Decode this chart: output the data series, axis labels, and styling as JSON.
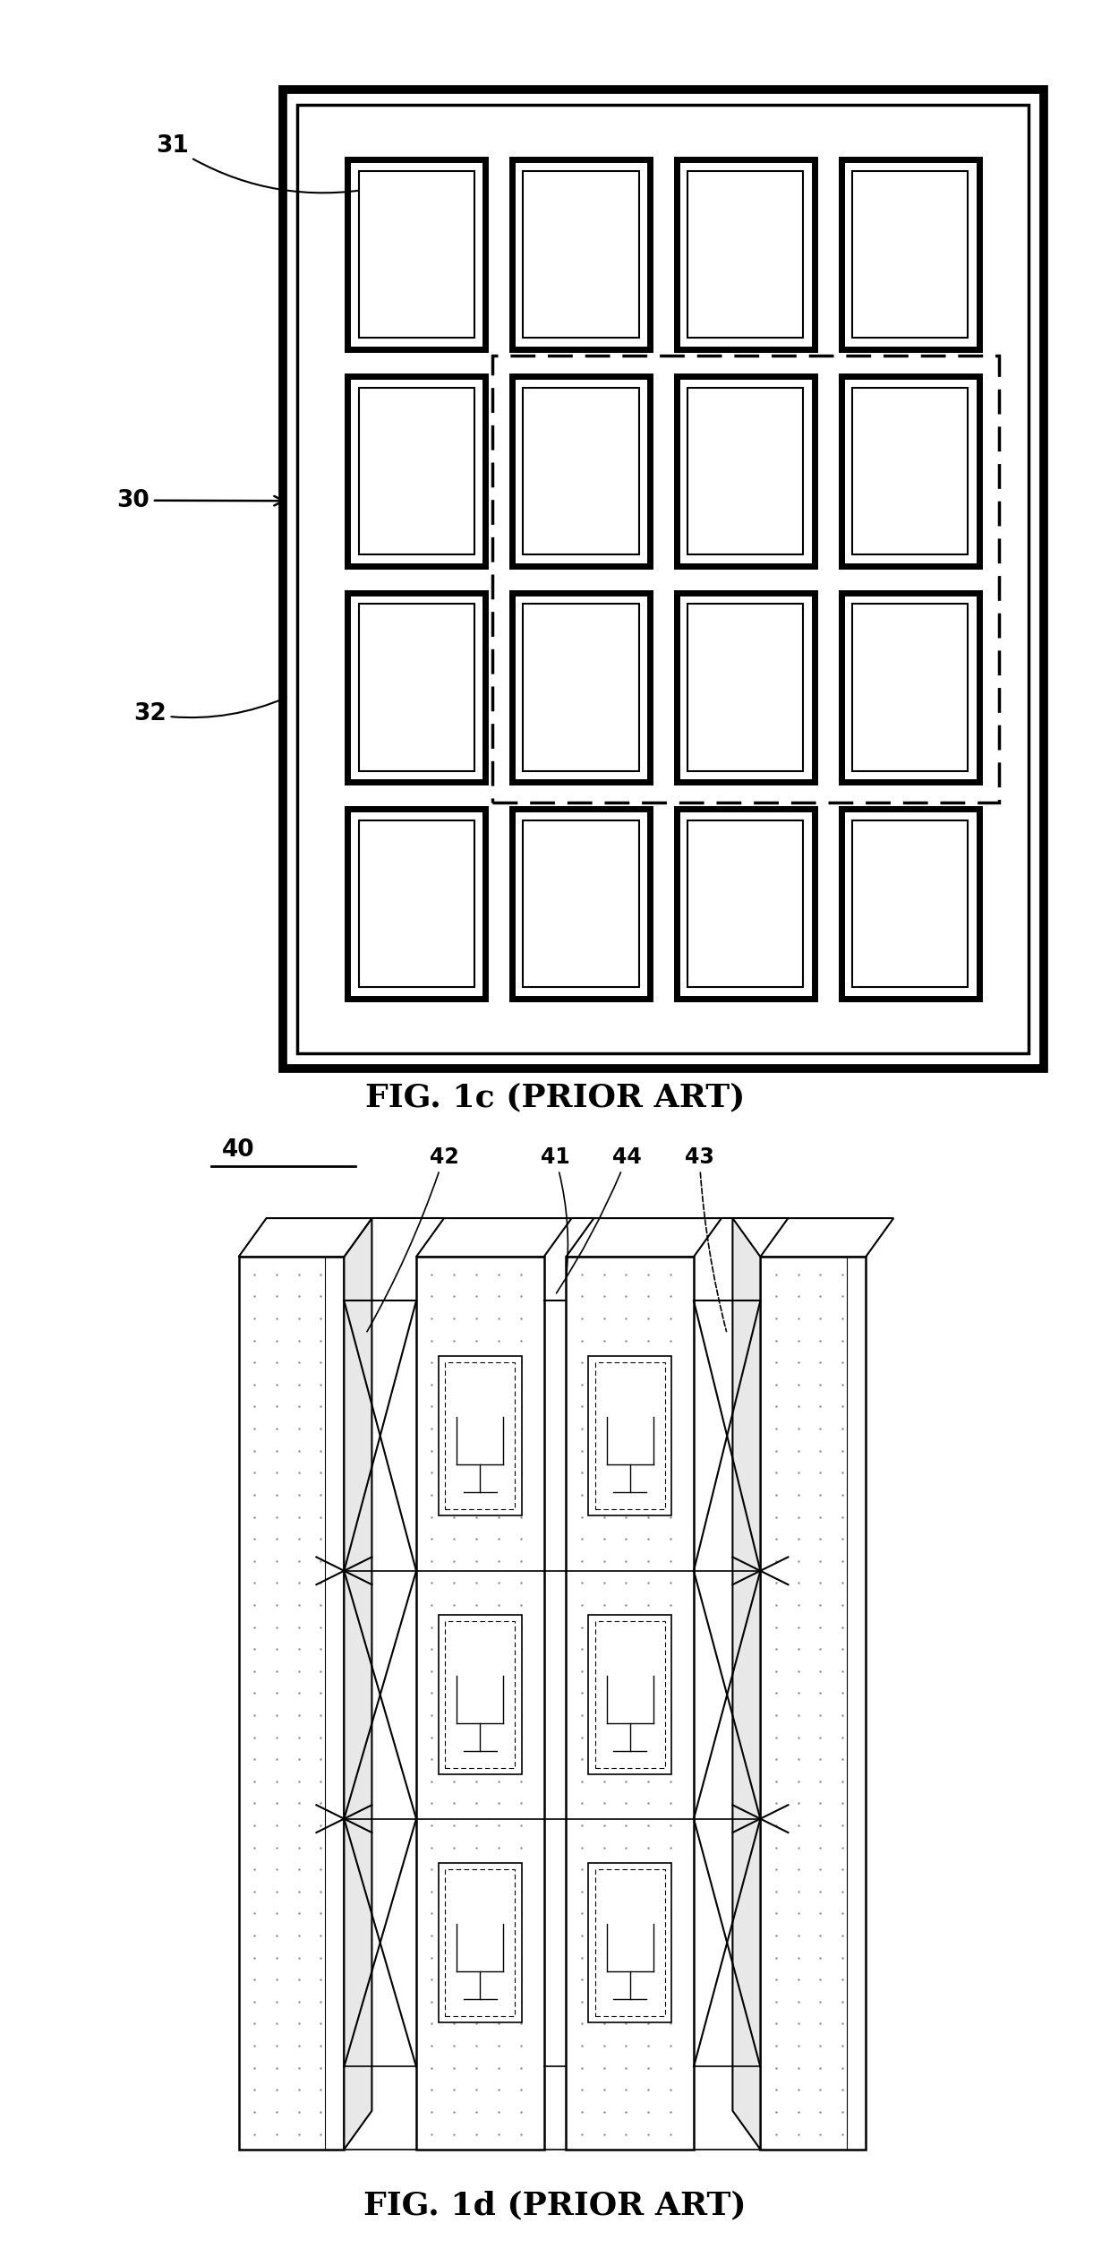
{
  "fig_width": 12.4,
  "fig_height": 25.11,
  "background": "#ffffff",
  "lc": "#000000",
  "fig1c_title": "FIG. 1c (PRIOR ART)",
  "fig1d_title": "FIG. 1d (PRIOR ART)",
  "label_30": "30",
  "label_31": "31",
  "label_32": "32",
  "label_40": "40",
  "label_41": "41",
  "label_42": "42",
  "label_43": "43",
  "label_44": "44",
  "fig1c_outer": [
    0.255,
    0.05,
    0.685,
    0.87
  ],
  "fig1c_grid_rows": 4,
  "fig1c_grid_cols": 4,
  "fig1c_dashed_cols": [
    1,
    3
  ],
  "fig1c_dashed_rows": [
    1,
    2
  ]
}
